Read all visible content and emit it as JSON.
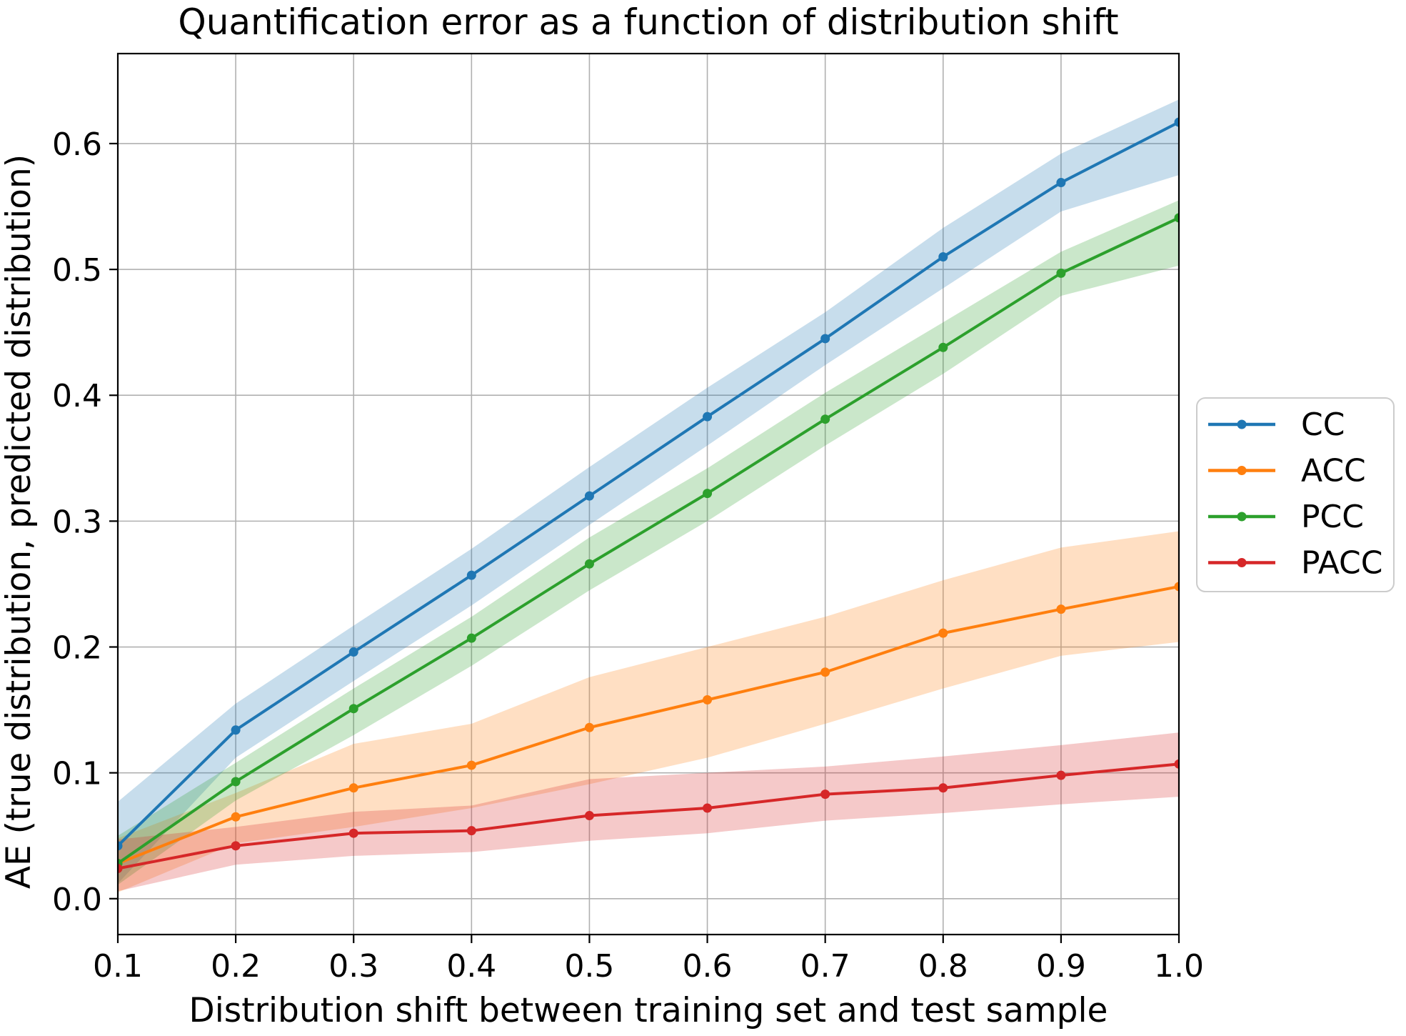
{
  "chart_data": {
    "type": "line",
    "title": "Quantification error as a function of distribution shift",
    "xlabel": "Distribution shift between training set and test sample",
    "ylabel": "AE (true distribution, predicted distribution)",
    "x": [
      0.1,
      0.2,
      0.3,
      0.4,
      0.5,
      0.6,
      0.7,
      0.8,
      0.9,
      1.0
    ],
    "xlim": [
      0.1,
      1.0
    ],
    "ylim": [
      -0.0285,
      0.6715
    ],
    "x_tick_labels": [
      "0.1",
      "0.2",
      "0.3",
      "0.4",
      "0.5",
      "0.6",
      "0.7",
      "0.8",
      "0.9",
      "1.0"
    ],
    "y_tick_values": [
      0.0,
      0.1,
      0.2,
      0.3,
      0.4,
      0.5,
      0.6
    ],
    "y_tick_labels": [
      "0.0",
      "0.1",
      "0.2",
      "0.3",
      "0.4",
      "0.5",
      "0.6"
    ],
    "grid": true,
    "legend_position": "outside-right",
    "band_opacity": 0.25,
    "colors": {
      "grid": "#b0b0b0",
      "spine": "#000000",
      "background": "#ffffff",
      "legend_border": "#cccccc"
    },
    "series": [
      {
        "name": "CC",
        "color": "#1f77b4",
        "values": [
          0.042,
          0.134,
          0.196,
          0.257,
          0.32,
          0.383,
          0.445,
          0.51,
          0.569,
          0.617
        ],
        "band_lower": [
          0.012,
          0.112,
          0.173,
          0.233,
          0.297,
          0.36,
          0.424,
          0.485,
          0.546,
          0.575
        ],
        "band_upper": [
          0.077,
          0.155,
          0.217,
          0.278,
          0.343,
          0.406,
          0.466,
          0.533,
          0.592,
          0.635
        ]
      },
      {
        "name": "ACC",
        "color": "#ff7f0e",
        "values": [
          0.028,
          0.065,
          0.088,
          0.106,
          0.136,
          0.158,
          0.18,
          0.211,
          0.23,
          0.248
        ],
        "band_lower": [
          0.005,
          0.044,
          0.057,
          0.072,
          0.091,
          0.112,
          0.139,
          0.167,
          0.193,
          0.204
        ],
        "band_upper": [
          0.048,
          0.084,
          0.123,
          0.139,
          0.176,
          0.2,
          0.224,
          0.253,
          0.279,
          0.292
        ]
      },
      {
        "name": "PCC",
        "color": "#2ca02c",
        "values": [
          0.028,
          0.093,
          0.151,
          0.207,
          0.266,
          0.322,
          0.381,
          0.438,
          0.497,
          0.541
        ],
        "band_lower": [
          0.011,
          0.078,
          0.13,
          0.185,
          0.245,
          0.3,
          0.36,
          0.417,
          0.479,
          0.503
        ],
        "band_upper": [
          0.05,
          0.108,
          0.167,
          0.224,
          0.287,
          0.342,
          0.402,
          0.458,
          0.514,
          0.555
        ]
      },
      {
        "name": "PACC",
        "color": "#d62728",
        "values": [
          0.024,
          0.042,
          0.052,
          0.054,
          0.066,
          0.072,
          0.083,
          0.088,
          0.098,
          0.107
        ],
        "band_lower": [
          0.006,
          0.027,
          0.034,
          0.037,
          0.046,
          0.052,
          0.062,
          0.068,
          0.075,
          0.081
        ],
        "band_upper": [
          0.047,
          0.057,
          0.069,
          0.074,
          0.095,
          0.1,
          0.105,
          0.113,
          0.122,
          0.132
        ]
      }
    ]
  }
}
